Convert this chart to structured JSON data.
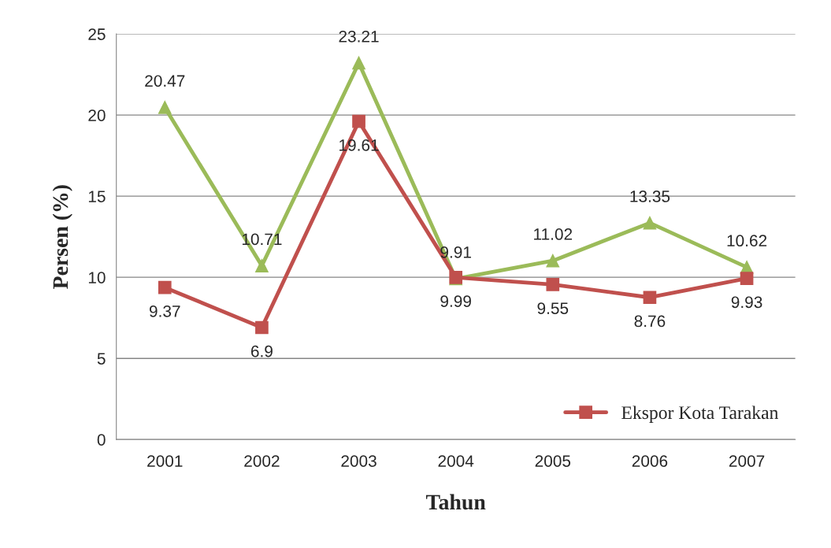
{
  "chart_data": {
    "type": "line",
    "xlabel": "Tahun",
    "ylabel": "Persen (%)",
    "categories": [
      "2001",
      "2002",
      "2003",
      "2004",
      "2005",
      "2006",
      "2007"
    ],
    "series": [
      {
        "color": "#9bbb59",
        "marker": "triangle",
        "values": [
          20.47,
          10.71,
          23.21,
          9.91,
          11.02,
          13.35,
          10.62
        ]
      },
      {
        "name": "Ekspor Kota Tarakan",
        "color": "#c0504d",
        "marker": "square",
        "values": [
          9.37,
          6.9,
          19.61,
          9.99,
          9.55,
          8.76,
          9.93
        ]
      }
    ],
    "ylim": [
      0,
      25
    ],
    "yticks": [
      0,
      5,
      10,
      15,
      20,
      25
    ],
    "grid": "y",
    "legend": "bottom right",
    "data_labels": true
  }
}
